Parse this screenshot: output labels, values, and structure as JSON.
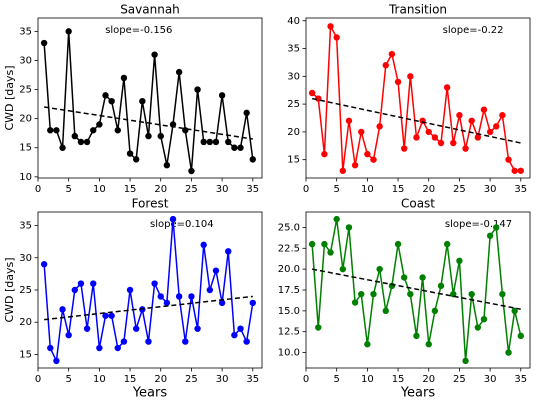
{
  "chart_data": [
    {
      "type": "line",
      "title": "Savannah",
      "y_label": "CWD [days]",
      "annotation": "slope=-0.156",
      "color": "#000000",
      "x": [
        1,
        2,
        3,
        4,
        5,
        6,
        7,
        8,
        9,
        10,
        11,
        12,
        13,
        14,
        15,
        16,
        17,
        18,
        19,
        20,
        21,
        22,
        23,
        24,
        25,
        26,
        27,
        28,
        29,
        30,
        31,
        32,
        33,
        34,
        35
      ],
      "values": [
        33,
        18,
        18,
        15,
        35,
        17,
        16,
        16,
        18,
        19,
        24,
        23,
        18,
        27,
        14,
        13,
        23,
        17,
        31,
        17,
        12,
        19,
        28,
        18,
        11,
        25,
        16,
        16,
        16,
        24,
        16,
        15,
        15,
        21,
        13
      ],
      "trend": {
        "x": [
          1,
          35
        ],
        "y": [
          22,
          16.5
        ]
      },
      "xlim": [
        0,
        36.5
      ],
      "xticks": [
        0,
        5,
        10,
        15,
        20,
        25,
        30,
        35
      ],
      "ylim": [
        9.8,
        37.3
      ],
      "yticks": [
        10,
        15,
        20,
        25,
        30,
        35
      ]
    },
    {
      "type": "line",
      "title": "Transition",
      "annotation": "slope=-0.22",
      "color": "#ff0000",
      "x": [
        1,
        2,
        3,
        4,
        5,
        6,
        7,
        8,
        9,
        10,
        11,
        12,
        13,
        14,
        15,
        16,
        17,
        18,
        19,
        20,
        21,
        22,
        23,
        24,
        25,
        26,
        27,
        28,
        29,
        30,
        31,
        32,
        33,
        34,
        35
      ],
      "values": [
        27,
        26,
        16,
        39,
        37,
        13,
        22,
        14,
        20,
        16,
        15,
        21,
        32,
        34,
        29,
        17,
        30,
        19,
        22,
        20,
        19,
        18,
        28,
        18,
        23,
        17,
        22,
        19,
        24,
        20,
        21,
        23,
        15,
        13,
        13
      ],
      "trend": {
        "x": [
          1,
          35
        ],
        "y": [
          26,
          18
        ]
      },
      "xlim": [
        0,
        36.5
      ],
      "xticks": [
        0,
        5,
        10,
        15,
        20,
        25,
        30,
        35
      ],
      "ylim": [
        11.7,
        40.5
      ],
      "yticks": [
        15,
        20,
        25,
        30,
        35,
        40
      ]
    },
    {
      "type": "line",
      "title": "Forest",
      "y_label": "CWD [days]",
      "x_label": "Years",
      "annotation": "slope=0.104",
      "color": "#0000ff",
      "x": [
        1,
        2,
        3,
        4,
        5,
        6,
        7,
        8,
        9,
        10,
        11,
        12,
        13,
        14,
        15,
        16,
        17,
        18,
        19,
        20,
        21,
        22,
        23,
        24,
        25,
        26,
        27,
        28,
        29,
        30,
        31,
        32,
        33,
        34,
        35
      ],
      "values": [
        29,
        16,
        14,
        22,
        18,
        25,
        26,
        19,
        26,
        16,
        21,
        21,
        16,
        17,
        25,
        19,
        22,
        17,
        26,
        24,
        23,
        36,
        24,
        17,
        24,
        19,
        32,
        25,
        28,
        23,
        31,
        18,
        19,
        17,
        23
      ],
      "trend": {
        "x": [
          1,
          35
        ],
        "y": [
          20.4,
          24
        ]
      },
      "xlim": [
        0,
        36.5
      ],
      "xticks": [
        0,
        5,
        10,
        15,
        20,
        25,
        30,
        35
      ],
      "ylim": [
        12.9,
        37.1
      ],
      "yticks": [
        15,
        20,
        25,
        30,
        35
      ]
    },
    {
      "type": "line",
      "title": "Coast",
      "x_label": "Years",
      "annotation": "slope=-0.147",
      "color": "#008000",
      "x": [
        1,
        2,
        3,
        4,
        5,
        6,
        7,
        8,
        9,
        10,
        11,
        12,
        13,
        14,
        15,
        16,
        17,
        18,
        19,
        20,
        21,
        22,
        23,
        24,
        25,
        26,
        27,
        28,
        29,
        30,
        31,
        32,
        33,
        34,
        35
      ],
      "values": [
        23,
        13,
        23,
        22,
        26,
        20,
        25,
        16,
        17,
        11,
        17,
        20,
        15,
        18,
        23,
        19,
        17,
        12,
        19,
        11,
        15,
        18,
        23,
        17,
        21,
        9,
        17,
        13,
        14,
        24,
        25,
        17,
        10,
        15,
        12
      ],
      "trend": {
        "x": [
          1,
          35
        ],
        "y": [
          20,
          15.2
        ]
      },
      "xlim": [
        0,
        36.5
      ],
      "xticks": [
        0,
        5,
        10,
        15,
        20,
        25,
        30,
        35
      ],
      "ylim": [
        8.15,
        26.85
      ],
      "yticks": [
        {
          "value": 10,
          "label": "10.0"
        },
        12.5,
        {
          "value": 15,
          "label": "15.0"
        },
        17.5,
        {
          "value": 20,
          "label": "20.0"
        },
        22.5,
        {
          "value": 25,
          "label": "25.0"
        }
      ]
    }
  ]
}
